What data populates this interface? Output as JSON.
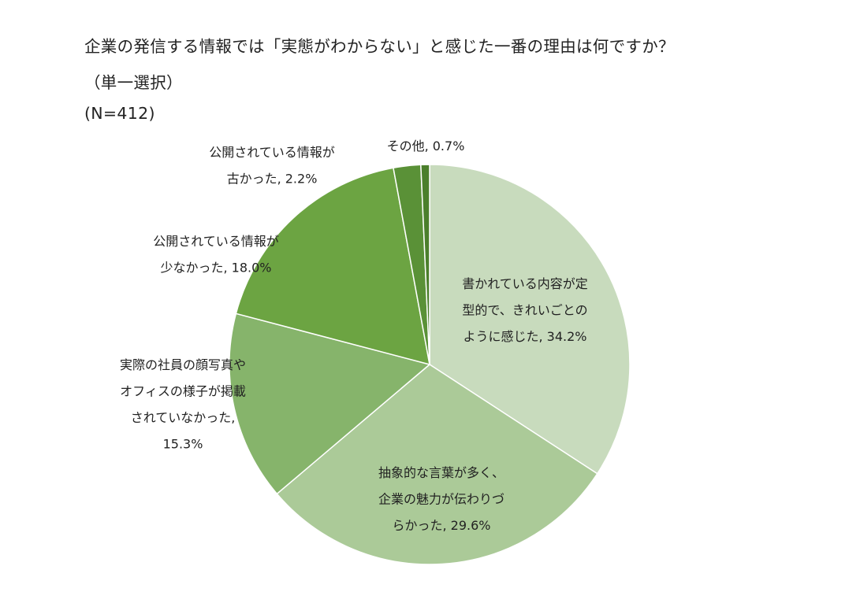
{
  "title": {
    "line1": "企業の発信する情報では「実態がわからない」と感じた一番の理由は何ですか？",
    "line2": "（単一選択）",
    "line3": "(N=412)"
  },
  "chart_data": {
    "type": "pie",
    "title": "企業の発信する情報では「実態がわからない」と感じた一番の理由は何ですか？（単一選択）",
    "n": "(N=412)",
    "start_angle_deg": 0,
    "direction": "clockwise",
    "slices": [
      {
        "label_lines": [
          "書かれている内容が定",
          "型的で、きれいごとの",
          "ように感じた, 34.2%"
        ],
        "value": 34.2,
        "color": "#c8dbbd"
      },
      {
        "label_lines": [
          "抽象的な言葉が多く、",
          "企業の魅力が伝わりづ",
          "らかった, 29.6%"
        ],
        "value": 29.6,
        "color": "#abca98"
      },
      {
        "label_lines": [
          "実際の社員の顔写真や",
          "オフィスの様子が掲載",
          "されていなかった,",
          "15.3%"
        ],
        "value": 15.3,
        "color": "#86b46b"
      },
      {
        "label_lines": [
          "公開されている情報が",
          "少なかった, 18.0%"
        ],
        "value": 18.0,
        "color": "#6ca442"
      },
      {
        "label_lines": [
          "公開されている情報が",
          "古かった, 2.2%"
        ],
        "value": 2.2,
        "color": "#5a9137"
      },
      {
        "label_lines": [
          "その他, 0.7%"
        ],
        "value": 0.7,
        "color": "#4b7f2c"
      }
    ]
  }
}
